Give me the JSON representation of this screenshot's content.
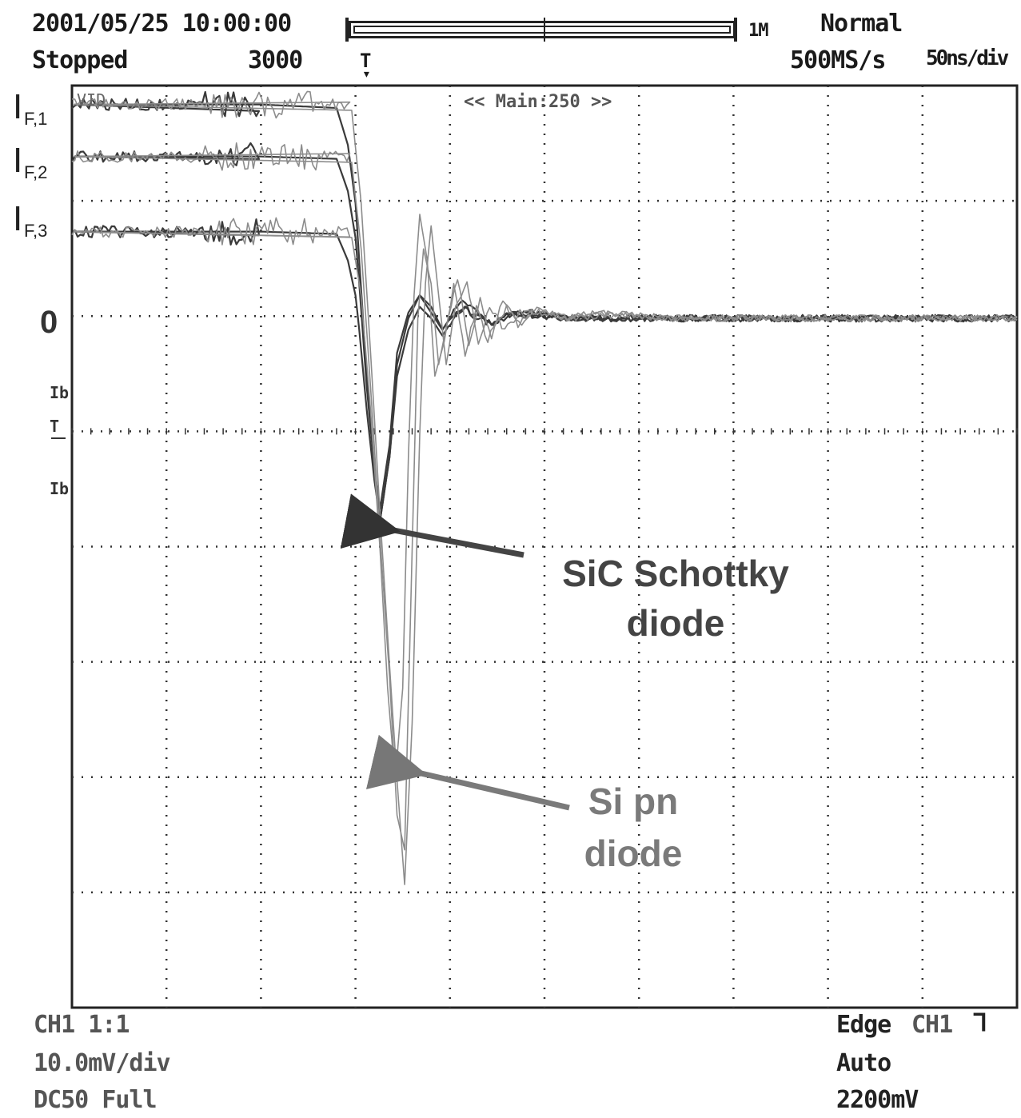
{
  "header": {
    "datetime": "2001/05/25 10:00:00",
    "status": "Stopped",
    "count": "3000",
    "memory_label": "1M",
    "trigger_marker": "T",
    "mode": "Normal",
    "sample_rate": "500MS/s",
    "timebase": "50ns/div"
  },
  "screen": {
    "channel_tag": "VID",
    "zoom_label": "<< Main:250 >>",
    "zero_label": "0",
    "marker_labels": [
      "Ib",
      "T",
      "Ib"
    ]
  },
  "footer": {
    "ch_scale": "CH1 1:1",
    "v_div": "10.0mV/div",
    "coupling": "DC50 Full",
    "trigger_type": "Edge",
    "trigger_source": "CH1",
    "trigger_mode": "Auto",
    "trigger_level": "2200mV"
  },
  "colors": {
    "grid": "#333333",
    "sic": "#3a3a3a",
    "si": "#8c8c8c",
    "frame": "#222222"
  },
  "chart_data": {
    "type": "line",
    "title": "",
    "xlabel": "",
    "ylabel": "",
    "x_unit": "ns",
    "y_unit": "div",
    "xlim": [
      0,
      500
    ],
    "ylim": [
      -6,
      2.75
    ],
    "grid": true,
    "labels": {
      "trace_1": "I_F,1",
      "trace_2": "I_F,2",
      "trace_3": "I_F,3"
    },
    "annotations": [
      {
        "text": [
          "SiC Schottky",
          "diode"
        ],
        "points_to": {
          "x": 163,
          "y": -1.8
        }
      },
      {
        "text": [
          "Si pn",
          "diode"
        ],
        "points_to": {
          "x": 177,
          "y": -3.9
        }
      }
    ],
    "series": [
      {
        "name": "I_F,1",
        "device": "SiC",
        "level": 1.85,
        "x": [
          0,
          100,
          140,
          146,
          150,
          152,
          156,
          160,
          163,
          168,
          172,
          178,
          184,
          190,
          196,
          202,
          208,
          215,
          222,
          230,
          245,
          260,
          300,
          400,
          500
        ],
        "y": [
          1.85,
          1.85,
          1.82,
          1.5,
          1.0,
          0.5,
          -0.5,
          -1.3,
          -1.75,
          -1.2,
          -0.4,
          0.0,
          0.2,
          0.1,
          -0.1,
          0.05,
          0.15,
          0.05,
          -0.05,
          0.02,
          0.05,
          0.0,
          0.0,
          0.0,
          0.0
        ]
      },
      {
        "name": "I_F,2",
        "device": "SiC",
        "level": 1.4,
        "x": [
          0,
          100,
          140,
          146,
          150,
          152,
          156,
          160,
          163,
          168,
          172,
          178,
          184,
          190,
          196,
          202,
          208,
          215,
          222,
          230,
          245,
          260,
          300,
          400,
          500
        ],
        "y": [
          1.4,
          1.4,
          1.38,
          1.1,
          0.7,
          0.3,
          -0.6,
          -1.3,
          -1.65,
          -1.1,
          -0.3,
          0.05,
          0.2,
          0.05,
          -0.1,
          0.05,
          0.1,
          0.0,
          -0.05,
          0.03,
          0.04,
          0.0,
          0.0,
          0.0,
          0.0
        ]
      },
      {
        "name": "I_F,3",
        "device": "SiC",
        "level": 0.75,
        "x": [
          0,
          100,
          140,
          146,
          150,
          152,
          156,
          160,
          163,
          168,
          172,
          178,
          184,
          190,
          196,
          202,
          208,
          215,
          222,
          230,
          245,
          260,
          300,
          400,
          500
        ],
        "y": [
          0.75,
          0.75,
          0.73,
          0.5,
          0.2,
          -0.1,
          -0.8,
          -1.4,
          -1.75,
          -1.2,
          -0.5,
          -0.1,
          0.1,
          0.0,
          -0.15,
          0.0,
          0.08,
          0.0,
          -0.05,
          0.02,
          0.03,
          0.0,
          0.0,
          0.0,
          0.0
        ]
      },
      {
        "name": "Si pn 1",
        "device": "Si",
        "level": 0.75,
        "x": [
          0,
          148,
          153,
          158,
          163,
          167,
          171,
          175,
          178,
          181,
          184,
          188,
          192,
          197,
          202,
          208,
          214,
          220,
          228,
          236,
          246,
          260,
          280,
          320,
          400,
          500
        ],
        "y": [
          0.75,
          0.7,
          0.2,
          -0.8,
          -2.0,
          -3.2,
          -4.0,
          -3.2,
          -1.2,
          0.2,
          0.9,
          0.5,
          -0.5,
          -0.2,
          0.3,
          -0.3,
          0.1,
          -0.2,
          0.15,
          -0.05,
          0.1,
          0.0,
          0.05,
          0.0,
          0.0,
          0.0
        ]
      },
      {
        "name": "Si pn 2",
        "device": "Si",
        "level": 1.4,
        "x": [
          0,
          148,
          153,
          158,
          163,
          168,
          172,
          176,
          180,
          183,
          186,
          190,
          194,
          199,
          204,
          210,
          216,
          222,
          230,
          238,
          248,
          262,
          282,
          320,
          400,
          500
        ],
        "y": [
          1.4,
          1.35,
          0.6,
          -0.6,
          -1.9,
          -3.1,
          -4.3,
          -4.6,
          -2.0,
          0.0,
          0.6,
          0.3,
          -0.4,
          0.0,
          0.35,
          -0.25,
          0.15,
          -0.15,
          0.1,
          -0.05,
          0.08,
          0.0,
          0.04,
          0.0,
          0.0,
          0.0
        ]
      },
      {
        "name": "Si pn 3",
        "device": "Si",
        "level": 1.85,
        "x": [
          0,
          148,
          153,
          158,
          163,
          168,
          172,
          176,
          180,
          184,
          187,
          190,
          194,
          198,
          203,
          209,
          215,
          221,
          229,
          237,
          247,
          262,
          282,
          320,
          400,
          500
        ],
        "y": [
          1.85,
          1.8,
          1.0,
          -0.3,
          -1.7,
          -3.0,
          -4.0,
          -4.9,
          -3.5,
          -1.0,
          0.3,
          0.8,
          0.2,
          -0.4,
          0.1,
          0.3,
          -0.2,
          0.1,
          -0.1,
          0.05,
          0.05,
          0.0,
          0.03,
          0.0,
          0.0,
          0.0
        ]
      }
    ]
  }
}
